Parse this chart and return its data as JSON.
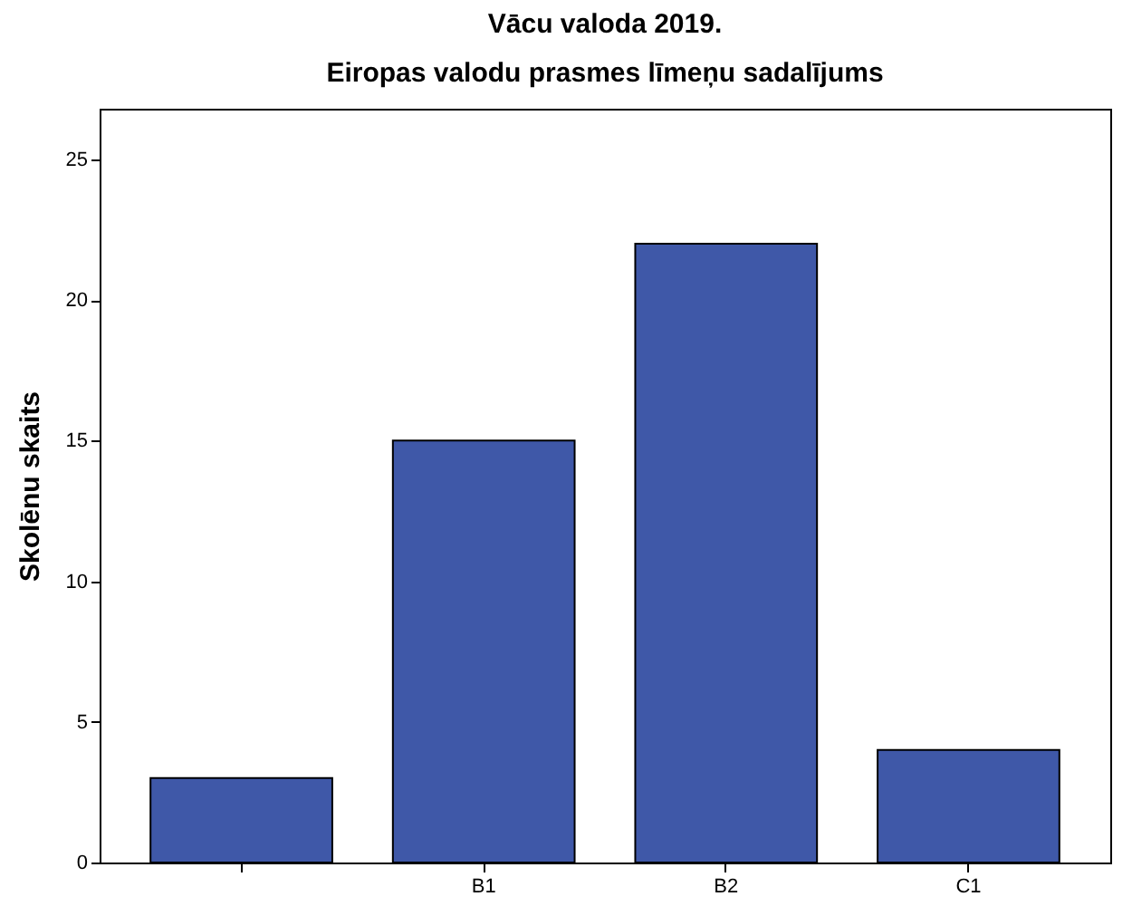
{
  "chart_data": {
    "type": "bar",
    "title": "Vācu valoda 2019.",
    "subtitle": "Eiropas valodu prasmes līmeņu sadalījums",
    "ylabel": "Skolēnu skaits",
    "categories": [
      null,
      "B1",
      "B2",
      "C1"
    ],
    "values": [
      3,
      15,
      22,
      4
    ],
    "color": "#3f58a8",
    "ylim": [
      0,
      26.8
    ],
    "yticks": [
      0,
      5,
      10,
      15,
      20,
      25
    ],
    "grid": false
  }
}
